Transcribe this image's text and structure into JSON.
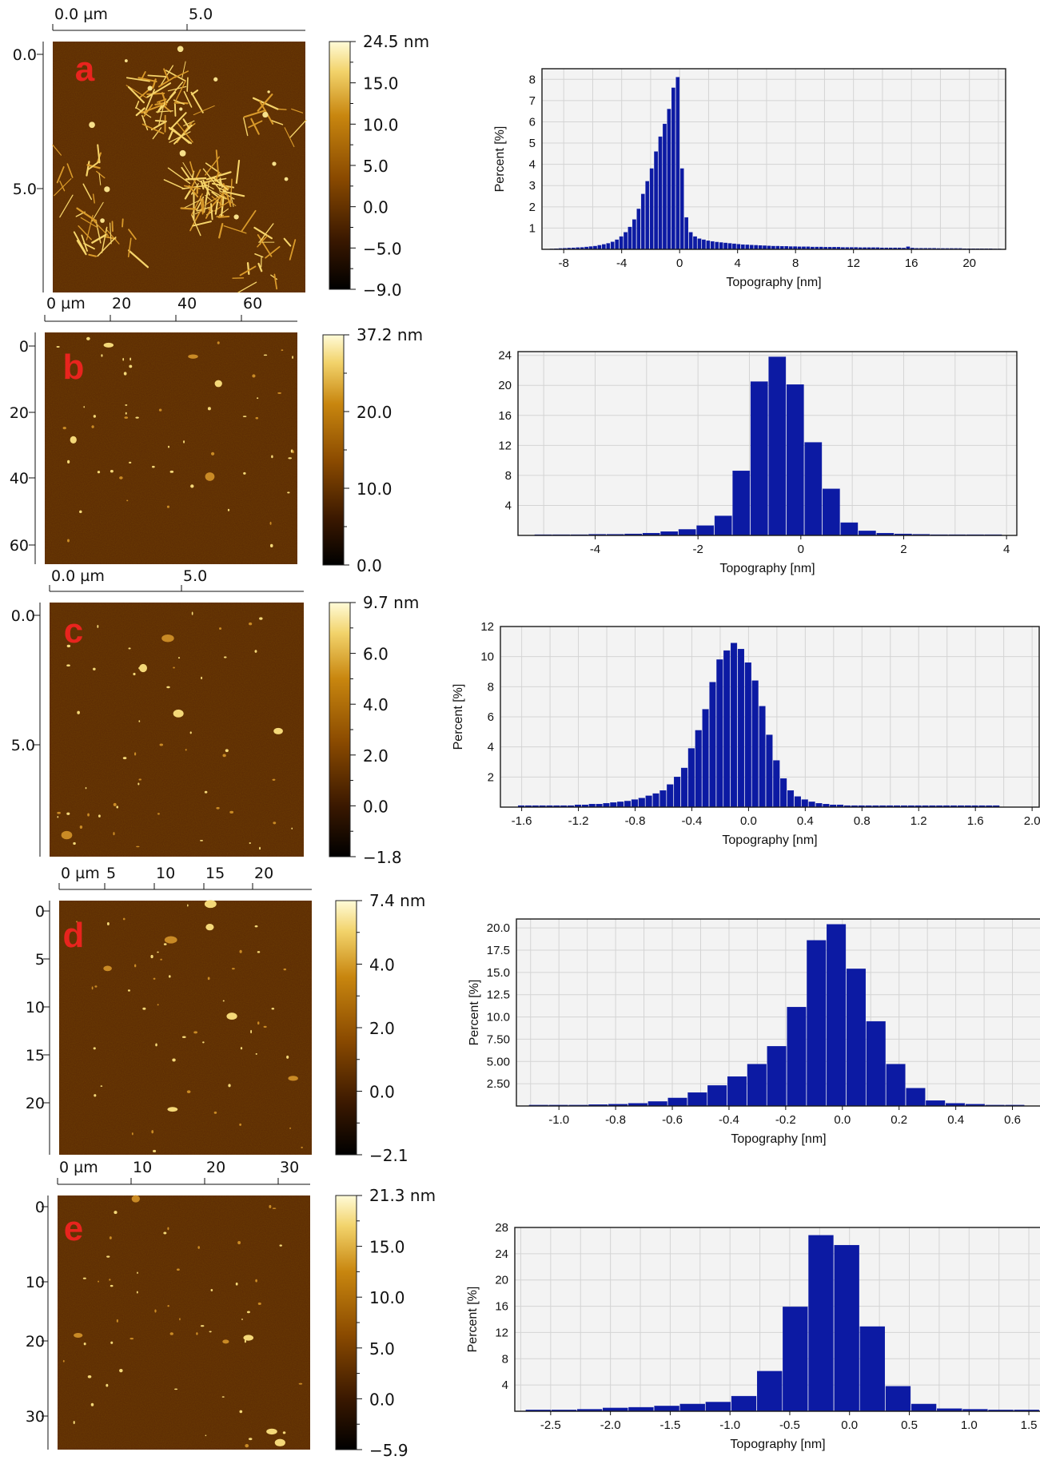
{
  "chart_data": [
    {
      "type": "heatmap",
      "panel_label": "a",
      "x_ticks": [
        "0.0 µm",
        "5.0"
      ],
      "y_ticks": [
        "0.0",
        "5.0"
      ],
      "scale_labels": [
        "24.5 nm",
        "15.0",
        "10.0",
        "5.0",
        "0.0",
        "−5.0",
        "−9.0"
      ],
      "scale_range": [
        -9.0,
        24.5
      ],
      "features": "fibrils"
    },
    {
      "type": "bar",
      "panel_label": "a",
      "xlabel": "Topography [nm]",
      "ylabel": "Percent [%]",
      "xlim": [
        -9.5,
        22.5
      ],
      "ylim": [
        0,
        8.5
      ],
      "xticks": [
        -8,
        -4,
        0,
        4,
        8,
        12,
        16,
        20
      ],
      "yticks": [
        1,
        2,
        3,
        4,
        5,
        6,
        7,
        8
      ],
      "tick_labels_x": [
        "-8",
        "-4",
        "0",
        "4",
        "8",
        "12",
        "16",
        "20"
      ],
      "tick_labels_y": [
        "1",
        "2",
        "3",
        "4",
        "5",
        "6",
        "7",
        "8"
      ],
      "bin_width": 0.3,
      "x": [
        -9.1,
        -8.8,
        -8.5,
        -8.2,
        -7.9,
        -7.6,
        -7.3,
        -7.0,
        -6.7,
        -6.4,
        -6.1,
        -5.8,
        -5.5,
        -5.2,
        -4.9,
        -4.6,
        -4.3,
        -4.0,
        -3.7,
        -3.4,
        -3.1,
        -2.8,
        -2.5,
        -2.2,
        -1.9,
        -1.6,
        -1.3,
        -1.0,
        -0.7,
        -0.4,
        -0.1,
        0.2,
        0.5,
        0.8,
        1.1,
        1.4,
        1.7,
        2.0,
        2.3,
        2.6,
        2.9,
        3.2,
        3.5,
        3.8,
        4.1,
        4.4,
        4.7,
        5.0,
        5.3,
        5.6,
        5.9,
        6.2,
        6.5,
        6.8,
        7.1,
        7.4,
        7.7,
        8.0,
        8.3,
        8.6,
        8.9,
        9.2,
        9.5,
        9.8,
        10.1,
        10.4,
        10.7,
        11.0,
        11.3,
        11.6,
        11.9,
        12.2,
        12.5,
        12.8,
        13.1,
        13.4,
        13.7,
        14.0,
        14.3,
        14.6,
        14.9,
        15.2,
        15.5,
        15.8,
        16.1,
        16.4,
        16.7,
        17.0,
        17.3,
        17.6,
        17.9,
        18.2,
        18.5,
        18.8,
        19.1,
        19.4,
        19.7,
        20.0,
        20.3,
        20.6,
        20.9,
        21.2,
        21.5,
        21.8,
        22.1
      ],
      "values": [
        0.01,
        0.02,
        0.03,
        0.04,
        0.05,
        0.06,
        0.07,
        0.08,
        0.09,
        0.11,
        0.13,
        0.15,
        0.19,
        0.23,
        0.28,
        0.35,
        0.45,
        0.6,
        0.8,
        1.05,
        1.4,
        1.9,
        2.6,
        3.2,
        3.8,
        4.6,
        5.3,
        5.9,
        6.6,
        7.6,
        8.1,
        3.8,
        1.5,
        0.8,
        0.6,
        0.5,
        0.45,
        0.4,
        0.37,
        0.34,
        0.32,
        0.3,
        0.28,
        0.26,
        0.24,
        0.22,
        0.21,
        0.2,
        0.19,
        0.18,
        0.17,
        0.16,
        0.15,
        0.15,
        0.14,
        0.14,
        0.13,
        0.13,
        0.12,
        0.12,
        0.12,
        0.11,
        0.11,
        0.11,
        0.1,
        0.1,
        0.1,
        0.1,
        0.09,
        0.09,
        0.09,
        0.09,
        0.08,
        0.08,
        0.08,
        0.08,
        0.08,
        0.07,
        0.07,
        0.07,
        0.07,
        0.07,
        0.06,
        0.12,
        0.06,
        0.05,
        0.05,
        0.05,
        0.05,
        0.05,
        0.04,
        0.04,
        0.04,
        0.04,
        0.04,
        0.04,
        0.03,
        0.03,
        0.03,
        0.03,
        0.03,
        0.03,
        0.03,
        0.02,
        0.02
      ]
    },
    {
      "type": "heatmap",
      "panel_label": "b",
      "x_ticks": [
        "0 µm",
        "20",
        "40",
        "60"
      ],
      "y_ticks": [
        "0",
        "20",
        "40",
        "60"
      ],
      "scale_labels": [
        "37.2 nm",
        "20.0",
        "10.0",
        "0.0"
      ],
      "scale_range": [
        -5.0,
        37.2
      ],
      "features": "sparse"
    },
    {
      "type": "bar",
      "panel_label": "b",
      "xlabel": "Topography [nm]",
      "ylabel": "",
      "xlim": [
        -5.5,
        4.2
      ],
      "ylim": [
        0,
        24.5
      ],
      "xticks": [
        -4,
        -2,
        0,
        2,
        4
      ],
      "yticks": [
        4,
        8,
        12,
        16,
        20,
        24
      ],
      "tick_labels_x": [
        "-4",
        "-2",
        "0",
        "2",
        "4"
      ],
      "tick_labels_y": [
        "4",
        "8",
        "12",
        "16",
        "20",
        "24"
      ],
      "bin_width": 0.35,
      "x": [
        -5.0,
        -4.65,
        -4.3,
        -3.95,
        -3.6,
        -3.25,
        -2.9,
        -2.55,
        -2.2,
        -1.85,
        -1.5,
        -1.15,
        -0.8,
        -0.45,
        -0.1,
        0.25,
        0.6,
        0.95,
        1.3,
        1.65,
        2.0,
        2.35,
        2.7,
        3.05,
        3.4,
        3.75
      ],
      "values": [
        0.1,
        0.1,
        0.1,
        0.15,
        0.15,
        0.2,
        0.3,
        0.5,
        0.8,
        1.3,
        2.6,
        8.6,
        20.5,
        23.8,
        20.1,
        12.4,
        6.2,
        1.7,
        0.6,
        0.3,
        0.2,
        0.15,
        0.1,
        0.1,
        0.1,
        0.1
      ]
    },
    {
      "type": "heatmap",
      "panel_label": "c",
      "x_ticks": [
        "0.0 µm",
        "5.0"
      ],
      "y_ticks": [
        "0.0",
        "5.0"
      ],
      "scale_labels": [
        "9.7 nm",
        "6.0",
        "4.0",
        "2.0",
        "0.0",
        "−1.8"
      ],
      "scale_range": [
        -1.8,
        9.7
      ],
      "features": "sparse"
    },
    {
      "type": "bar",
      "panel_label": "c",
      "xlabel": "Topography [nm]",
      "ylabel": "Percent [%]",
      "xlim": [
        -1.75,
        2.05
      ],
      "ylim": [
        0,
        12
      ],
      "xticks": [
        -1.6,
        -1.2,
        -0.8,
        -0.4,
        0.0,
        0.4,
        0.8,
        1.2,
        1.6,
        2.0
      ],
      "yticks": [
        2,
        4,
        6,
        8,
        10,
        12
      ],
      "tick_labels_x": [
        "-1.6",
        "-1.2",
        "-0.8",
        "-0.4",
        "0.0",
        "0.4",
        "0.8",
        "1.2",
        "1.6",
        "2.0"
      ],
      "tick_labels_y": [
        "2",
        "4",
        "6",
        "8",
        "10",
        "12"
      ],
      "bin_width": 0.05,
      "x": [
        -1.6,
        -1.55,
        -1.5,
        -1.45,
        -1.4,
        -1.35,
        -1.3,
        -1.25,
        -1.2,
        -1.15,
        -1.1,
        -1.05,
        -1.0,
        -0.95,
        -0.9,
        -0.85,
        -0.8,
        -0.75,
        -0.7,
        -0.65,
        -0.6,
        -0.55,
        -0.5,
        -0.45,
        -0.4,
        -0.35,
        -0.3,
        -0.25,
        -0.2,
        -0.15,
        -0.1,
        -0.05,
        0.0,
        0.05,
        0.1,
        0.15,
        0.2,
        0.25,
        0.3,
        0.35,
        0.4,
        0.45,
        0.5,
        0.55,
        0.6,
        0.65,
        0.7,
        0.75,
        0.8,
        0.85,
        0.9,
        0.95,
        1.0,
        1.05,
        1.1,
        1.15,
        1.2,
        1.25,
        1.3,
        1.35,
        1.4,
        1.45,
        1.5,
        1.55,
        1.6,
        1.65,
        1.7,
        1.75
      ],
      "values": [
        0.1,
        0.1,
        0.1,
        0.1,
        0.1,
        0.1,
        0.1,
        0.1,
        0.15,
        0.15,
        0.2,
        0.2,
        0.25,
        0.3,
        0.35,
        0.4,
        0.5,
        0.6,
        0.75,
        0.9,
        1.1,
        1.5,
        2.0,
        2.6,
        3.9,
        5.1,
        6.5,
        8.3,
        9.8,
        10.4,
        10.9,
        10.5,
        9.6,
        8.4,
        6.7,
        4.8,
        3.1,
        1.9,
        1.1,
        0.7,
        0.5,
        0.35,
        0.25,
        0.2,
        0.15,
        0.15,
        0.1,
        0.1,
        0.1,
        0.1,
        0.1,
        0.1,
        0.1,
        0.1,
        0.1,
        0.1,
        0.1,
        0.1,
        0.1,
        0.1,
        0.1,
        0.1,
        0.1,
        0.1,
        0.1,
        0.1,
        0.1,
        0.1
      ]
    },
    {
      "type": "heatmap",
      "panel_label": "d",
      "x_ticks": [
        "0 µm",
        "5",
        "10",
        "15",
        "20"
      ],
      "y_ticks": [
        "0",
        "5",
        "10",
        "15",
        "20"
      ],
      "scale_labels": [
        "7.4 nm",
        "4.0",
        "2.0",
        "0.0",
        "−2.1"
      ],
      "scale_range": [
        -2.1,
        7.4
      ],
      "features": "sparse"
    },
    {
      "type": "bar",
      "panel_label": "d",
      "xlabel": "Topography [nm]",
      "ylabel": "Percent [%]",
      "xlim": [
        -1.15,
        0.7
      ],
      "ylim": [
        0,
        21
      ],
      "xticks": [
        -1.0,
        -0.8,
        -0.6,
        -0.4,
        -0.2,
        0.0,
        0.2,
        0.4,
        0.6
      ],
      "yticks": [
        2.5,
        5,
        7.5,
        10,
        12.5,
        15,
        17.5,
        20
      ],
      "tick_labels_x": [
        "-1.0",
        "-0.8",
        "-0.6",
        "-0.4",
        "-0.2",
        "0.0",
        "0.2",
        "0.4",
        "0.6"
      ],
      "tick_labels_y": [
        "2.50",
        "5.00",
        "7.50",
        "10.0",
        "12.5",
        "15.0",
        "17.5",
        "20.0"
      ],
      "bin_width": 0.07,
      "x": [
        -1.07,
        -1.0,
        -0.93,
        -0.86,
        -0.79,
        -0.72,
        -0.65,
        -0.58,
        -0.51,
        -0.44,
        -0.37,
        -0.3,
        -0.23,
        -0.16,
        -0.09,
        -0.02,
        0.05,
        0.12,
        0.19,
        0.26,
        0.33,
        0.4,
        0.47,
        0.54,
        0.61
      ],
      "values": [
        0.1,
        0.1,
        0.1,
        0.15,
        0.2,
        0.3,
        0.5,
        0.9,
        1.5,
        2.3,
        3.3,
        4.7,
        6.7,
        11.1,
        18.6,
        20.4,
        15.4,
        9.5,
        4.7,
        2.0,
        0.6,
        0.3,
        0.2,
        0.1,
        0.1
      ]
    },
    {
      "type": "heatmap",
      "panel_label": "e",
      "x_ticks": [
        "0 µm",
        "10",
        "20",
        "30"
      ],
      "y_ticks": [
        "0",
        "10",
        "20",
        "30"
      ],
      "scale_labels": [
        "21.3 nm",
        "15.0",
        "10.0",
        "5.0",
        "0.0",
        "−5.9"
      ],
      "scale_range": [
        -5.9,
        21.3
      ],
      "features": "sparse"
    },
    {
      "type": "bar",
      "panel_label": "e",
      "xlabel": "Topography [nm]",
      "ylabel": "Percent [%]",
      "xlim": [
        -2.8,
        1.6
      ],
      "ylim": [
        0,
        28
      ],
      "xticks": [
        -2.5,
        -2.0,
        -1.5,
        -1.0,
        -0.5,
        0.0,
        0.5,
        1.0,
        1.5
      ],
      "yticks": [
        4,
        8,
        12,
        16,
        20,
        24,
        28
      ],
      "tick_labels_x": [
        "-2.5",
        "-2.0",
        "-1.5",
        "-1.0",
        "-0.5",
        "0.0",
        "0.5",
        "1.0",
        "1.5"
      ],
      "tick_labels_y": [
        "4",
        "8",
        "12",
        "16",
        "20",
        "24",
        "28"
      ],
      "bin_width": 0.215,
      "x": [
        -2.6,
        -2.385,
        -2.17,
        -1.955,
        -1.74,
        -1.525,
        -1.31,
        -1.095,
        -0.88,
        -0.665,
        -0.45,
        -0.235,
        -0.02,
        0.195,
        0.41,
        0.625,
        0.84,
        1.055,
        1.27,
        1.485
      ],
      "values": [
        0.2,
        0.2,
        0.3,
        0.5,
        0.6,
        0.8,
        1.1,
        1.4,
        2.3,
        6.1,
        15.9,
        26.8,
        25.3,
        12.9,
        3.8,
        1.1,
        0.4,
        0.3,
        0.2,
        0.2
      ]
    }
  ]
}
